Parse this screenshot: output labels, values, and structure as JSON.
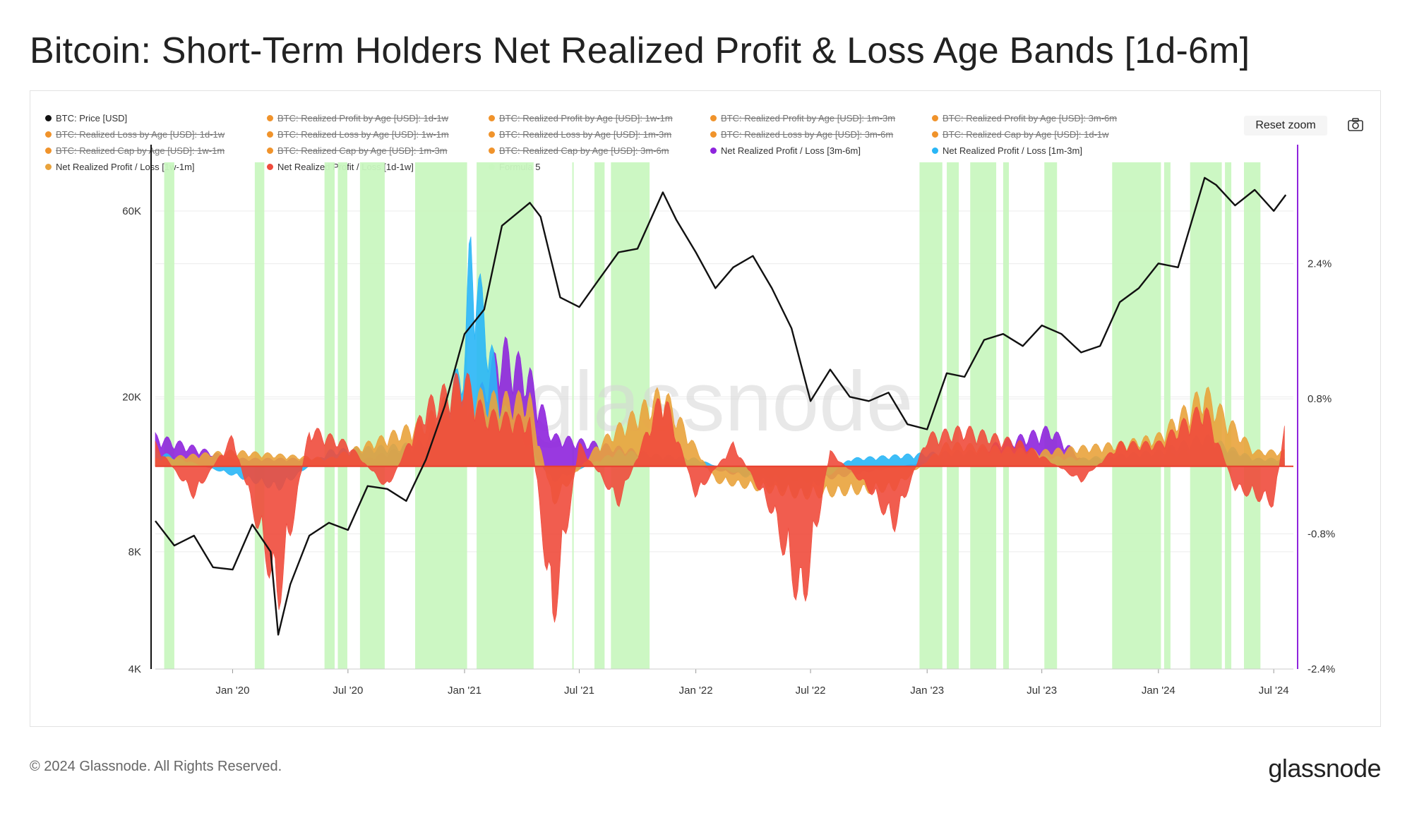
{
  "title": "Bitcoin: Short-Term Holders Net Realized Profit & Loss Age Bands  [1d-6m]",
  "toolbar": {
    "reset_zoom_label": "Reset zoom",
    "camera_icon": "camera-icon"
  },
  "legend": [
    {
      "label": "BTC: Price [USD]",
      "color": "#111111",
      "hidden": false
    },
    {
      "label": "BTC: Realized Profit by Age [USD]: 1d-1w",
      "color": "#f0932b",
      "hidden": true
    },
    {
      "label": "BTC: Realized Profit by Age [USD]: 1w-1m",
      "color": "#f0932b",
      "hidden": true
    },
    {
      "label": "BTC: Realized Profit by Age [USD]: 1m-3m",
      "color": "#f0932b",
      "hidden": true
    },
    {
      "label": "BTC: Realized Profit by Age [USD]: 3m-6m",
      "color": "#f0932b",
      "hidden": true
    },
    {
      "label": "BTC: Realized Loss by Age [USD]: 1d-1w",
      "color": "#f0932b",
      "hidden": true
    },
    {
      "label": "BTC: Realized Loss by Age [USD]: 1w-1m",
      "color": "#f0932b",
      "hidden": true
    },
    {
      "label": "BTC: Realized Loss by Age [USD]: 1m-3m",
      "color": "#f0932b",
      "hidden": true
    },
    {
      "label": "BTC: Realized Loss by Age [USD]: 3m-6m",
      "color": "#f0932b",
      "hidden": true
    },
    {
      "label": "BTC: Realized Cap by Age [USD]: 1d-1w",
      "color": "#f0932b",
      "hidden": true
    },
    {
      "label": "BTC: Realized Cap by Age [USD]: 1w-1m",
      "color": "#f0932b",
      "hidden": true
    },
    {
      "label": "BTC: Realized Cap by Age [USD]: 1m-3m",
      "color": "#f0932b",
      "hidden": true
    },
    {
      "label": "BTC: Realized Cap by Age [USD]: 3m-6m",
      "color": "#f0932b",
      "hidden": true
    },
    {
      "label": "Net Realized Profit / Loss [3m-6m]",
      "color": "#8e24dd",
      "hidden": false
    },
    {
      "label": "Net Realized Profit / Loss [1m-3m]",
      "color": "#29b6f6",
      "hidden": false
    },
    {
      "label": "Net Realized Profit / Loss [1w-1m]",
      "color": "#e9a33c",
      "hidden": false
    },
    {
      "label": "Net Realized Profit / Loss [1d-1w]",
      "color": "#ef4b3c",
      "hidden": false
    },
    {
      "label": "Formula 5",
      "color": "#c9f7c0",
      "hidden": false
    }
  ],
  "watermark": "glassnode",
  "footer": {
    "copyright": "© 2024 Glassnode. All Rights Reserved.",
    "logo_text": "glassnode"
  },
  "chart_data": {
    "type": "line",
    "x_range": [
      "2019-09-01",
      "2024-08-01"
    ],
    "x_ticks": [
      "Jan '20",
      "Jul '20",
      "Jan '21",
      "Jul '21",
      "Jan '22",
      "Jul '22",
      "Jan '23",
      "Jul '23",
      "Jan '24",
      "Jul '24"
    ],
    "y_left": {
      "label": "",
      "scale": "log",
      "ticks": [
        "4K",
        "8K",
        "20K",
        "60K"
      ],
      "range": [
        4000,
        80000
      ]
    },
    "y_right": {
      "label": "",
      "ticks": [
        "2.4%",
        "0.8%",
        "-0.8%",
        "-2.4%"
      ],
      "range": [
        -2.4,
        3.6
      ]
    },
    "grid": true,
    "legend_position": "top",
    "series": [
      {
        "name": "BTC: Price [USD]",
        "color": "#111111",
        "x": [
          "2019-09-01",
          "2019-10-01",
          "2019-11-01",
          "2019-12-01",
          "2020-01-01",
          "2020-02-01",
          "2020-03-01",
          "2020-03-13",
          "2020-04-01",
          "2020-05-01",
          "2020-06-01",
          "2020-07-01",
          "2020-08-01",
          "2020-09-01",
          "2020-10-01",
          "2020-11-01",
          "2020-12-01",
          "2021-01-01",
          "2021-02-01",
          "2021-03-01",
          "2021-04-14",
          "2021-05-01",
          "2021-06-01",
          "2021-07-01",
          "2021-08-01",
          "2021-09-01",
          "2021-10-01",
          "2021-11-10",
          "2021-12-01",
          "2022-01-01",
          "2022-02-01",
          "2022-03-01",
          "2022-04-01",
          "2022-05-01",
          "2022-06-01",
          "2022-07-01",
          "2022-08-01",
          "2022-09-01",
          "2022-10-01",
          "2022-11-01",
          "2022-12-01",
          "2023-01-01",
          "2023-02-01",
          "2023-03-01",
          "2023-04-01",
          "2023-05-01",
          "2023-06-01",
          "2023-07-01",
          "2023-08-01",
          "2023-09-01",
          "2023-10-01",
          "2023-11-01",
          "2023-12-01",
          "2024-01-01",
          "2024-02-01",
          "2024-03-14",
          "2024-04-01",
          "2024-05-01",
          "2024-06-01",
          "2024-07-01",
          "2024-07-20"
        ],
        "values": [
          9600,
          8300,
          8800,
          7300,
          7200,
          9400,
          8000,
          4900,
          6600,
          8800,
          9500,
          9100,
          11800,
          11600,
          10800,
          13800,
          19000,
          29000,
          33500,
          55000,
          63000,
          58000,
          36000,
          34000,
          40000,
          47000,
          48000,
          67000,
          57000,
          47000,
          38000,
          43000,
          46000,
          38000,
          30000,
          19500,
          23500,
          20000,
          19500,
          20500,
          17000,
          16500,
          23000,
          22500,
          28000,
          29000,
          27000,
          30500,
          29000,
          26000,
          27000,
          35000,
          38000,
          44000,
          43000,
          73000,
          70000,
          62000,
          68000,
          60000,
          66000
        ]
      },
      {
        "name": "Net Realized Profit / Loss [1d-1w]",
        "color": "#ef4b3c",
        "x": [
          "2019-09-01",
          "2019-11-01",
          "2020-01-01",
          "2020-03-13",
          "2020-05-01",
          "2020-07-01",
          "2020-09-01",
          "2020-11-01",
          "2021-01-01",
          "2021-02-01",
          "2021-04-14",
          "2021-05-20",
          "2021-07-01",
          "2021-09-01",
          "2021-11-10",
          "2022-01-01",
          "2022-03-01",
          "2022-05-01",
          "2022-06-18",
          "2022-08-01",
          "2022-10-01",
          "2022-11-10",
          "2023-01-01",
          "2023-03-01",
          "2023-06-01",
          "2023-09-01",
          "2023-11-01",
          "2024-01-01",
          "2024-03-14",
          "2024-05-01",
          "2024-07-01",
          "2024-07-20"
        ],
        "values": [
          0.3,
          -0.4,
          0.4,
          -1.8,
          0.5,
          0.3,
          -0.3,
          0.8,
          1.2,
          0.7,
          0.6,
          -2.1,
          0.3,
          -0.5,
          1.0,
          -0.4,
          0.3,
          -0.6,
          -1.9,
          0.2,
          -0.3,
          -0.8,
          0.4,
          0.5,
          0.3,
          -0.2,
          0.3,
          0.3,
          0.8,
          -0.3,
          -0.5,
          0.6
        ]
      },
      {
        "name": "Net Realized Profit / Loss [1w-1m]",
        "color": "#e9a33c",
        "x": [
          "2019-09-01",
          "2020-01-01",
          "2020-06-01",
          "2020-11-01",
          "2021-01-01",
          "2021-02-01",
          "2021-04-14",
          "2021-05-20",
          "2021-08-01",
          "2021-11-10",
          "2022-02-01",
          "2022-06-18",
          "2022-11-10",
          "2023-02-01",
          "2023-07-01",
          "2023-11-01",
          "2024-01-01",
          "2024-03-14",
          "2024-06-01",
          "2024-07-20"
        ],
        "values": [
          0.1,
          0.2,
          0.1,
          0.6,
          1.1,
          0.9,
          0.9,
          -0.5,
          0.3,
          1.0,
          -0.2,
          -0.4,
          -0.3,
          0.3,
          0.2,
          0.3,
          0.4,
          1.0,
          0.2,
          0.2
        ]
      },
      {
        "name": "Net Realized Profit / Loss [1m-3m]",
        "color": "#29b6f6",
        "x": [
          "2019-09-01",
          "2020-03-13",
          "2020-06-01",
          "2020-11-01",
          "2021-01-01",
          "2021-01-10",
          "2021-03-01",
          "2021-05-20",
          "2021-09-01",
          "2022-01-01",
          "2022-06-18",
          "2022-09-01",
          "2023-03-01",
          "2023-09-01",
          "2024-01-01",
          "2024-03-14",
          "2024-06-01",
          "2024-07-20"
        ],
        "values": [
          0.2,
          -0.3,
          0.2,
          0.3,
          1.4,
          3.0,
          0.8,
          -0.2,
          0.2,
          0.1,
          -0.4,
          0.1,
          0.2,
          0.1,
          0.2,
          0.4,
          0.1,
          0.1
        ]
      },
      {
        "name": "Net Realized Profit / Loss [3m-6m]",
        "color": "#8e24dd",
        "x": [
          "2019-09-01",
          "2020-01-01",
          "2020-08-01",
          "2021-01-01",
          "2021-03-01",
          "2021-04-14",
          "2021-05-20",
          "2021-10-01",
          "2022-03-01",
          "2022-07-01",
          "2023-02-01",
          "2023-07-15",
          "2023-09-01",
          "2024-01-01",
          "2024-03-14",
          "2024-06-01",
          "2024-07-20"
        ],
        "values": [
          0.4,
          0.1,
          0.1,
          0.5,
          1.6,
          1.2,
          0.4,
          0.2,
          -0.1,
          -0.2,
          0.1,
          0.5,
          0.1,
          0.1,
          0.3,
          0.1,
          0.05
        ]
      }
    ],
    "formula5_periods": [
      [
        "2019-09-15",
        "2019-10-01"
      ],
      [
        "2020-02-05",
        "2020-02-20"
      ],
      [
        "2020-05-25",
        "2020-06-10"
      ],
      [
        "2020-06-15",
        "2020-06-30"
      ],
      [
        "2020-07-20",
        "2020-08-28"
      ],
      [
        "2020-10-15",
        "2021-01-05"
      ],
      [
        "2021-01-20",
        "2021-04-20"
      ],
      [
        "2021-06-20",
        "2021-06-22"
      ],
      [
        "2021-07-25",
        "2021-08-10"
      ],
      [
        "2021-08-20",
        "2021-10-20"
      ],
      [
        "2022-12-20",
        "2023-01-25"
      ],
      [
        "2023-02-01",
        "2023-02-20"
      ],
      [
        "2023-03-10",
        "2023-04-20"
      ],
      [
        "2023-05-01",
        "2023-05-10"
      ],
      [
        "2023-07-05",
        "2023-07-25"
      ],
      [
        "2023-10-20",
        "2024-01-05"
      ],
      [
        "2024-01-10",
        "2024-01-20"
      ],
      [
        "2024-02-20",
        "2024-04-10"
      ],
      [
        "2024-04-15",
        "2024-04-25"
      ],
      [
        "2024-05-15",
        "2024-06-10"
      ]
    ]
  }
}
